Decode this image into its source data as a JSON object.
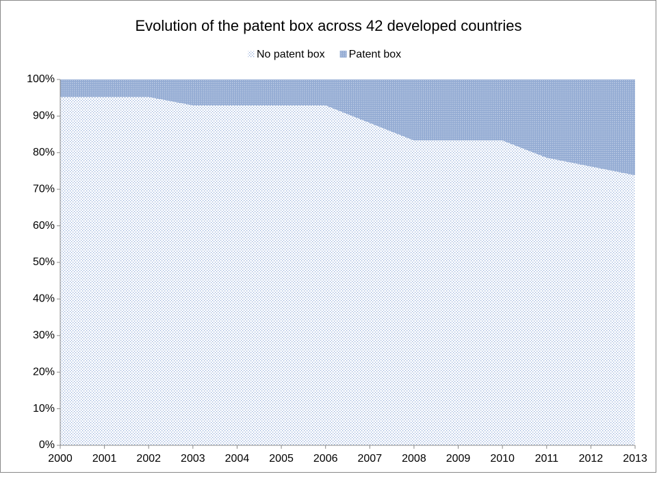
{
  "chart_data": {
    "type": "stacked_area",
    "title": "Evolution of the patent box across 42 developed countries",
    "categories": [
      "2000",
      "2001",
      "2002",
      "2003",
      "2004",
      "2005",
      "2006",
      "2007",
      "2008",
      "2009",
      "2010",
      "2011",
      "2012",
      "2013"
    ],
    "series": [
      {
        "name": "No patent box",
        "color": "#8eaad8",
        "values": [
          95.2,
          95.2,
          95.2,
          92.9,
          92.9,
          92.9,
          92.9,
          88.1,
          83.3,
          83.3,
          83.3,
          78.6,
          76.2,
          73.8
        ]
      },
      {
        "name": "Patent box",
        "color": "#6f8fc4",
        "values": [
          4.8,
          4.8,
          4.8,
          7.1,
          7.1,
          7.1,
          7.1,
          11.9,
          16.7,
          16.7,
          16.7,
          21.4,
          23.8,
          26.2
        ]
      }
    ],
    "ylim": [
      0,
      100
    ],
    "yticks": [
      {
        "value": 0,
        "label": "0%"
      },
      {
        "value": 10,
        "label": "10%"
      },
      {
        "value": 20,
        "label": "20%"
      },
      {
        "value": 30,
        "label": "30%"
      },
      {
        "value": 40,
        "label": "40%"
      },
      {
        "value": 50,
        "label": "50%"
      },
      {
        "value": 60,
        "label": "60%"
      },
      {
        "value": 70,
        "label": "70%"
      },
      {
        "value": 80,
        "label": "80%"
      },
      {
        "value": 90,
        "label": "90%"
      },
      {
        "value": 100,
        "label": "100%"
      }
    ],
    "legend": "top"
  }
}
